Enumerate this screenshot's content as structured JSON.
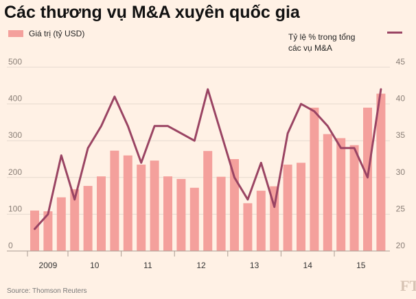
{
  "chart_data": {
    "type": "bar",
    "title": "Các thương vụ M&A xuyên quốc gia",
    "source": "Source: Thomson Reuters",
    "logo": "FT",
    "legend": {
      "bar_label": "Giá trị (tỷ USD)",
      "line_label_1": "Tỷ lệ % trong tổng",
      "line_label_2": "các vụ M&A"
    },
    "left_axis": {
      "ylim": [
        0,
        500
      ],
      "ticks": [
        0,
        100,
        200,
        300,
        400,
        500
      ]
    },
    "right_axis": {
      "ylim": [
        20,
        45
      ],
      "ticks": [
        20,
        25,
        30,
        35,
        40,
        45
      ]
    },
    "x_labels": [
      "2009",
      "10",
      "11",
      "12",
      "13",
      "14",
      "15"
    ],
    "series": [
      {
        "name": "Giá trị (tỷ USD)",
        "kind": "bar",
        "color": "#f4a09c",
        "values": [
          110,
          108,
          146,
          168,
          177,
          203,
          273,
          260,
          235,
          246,
          203,
          196,
          172,
          272,
          202,
          250,
          130,
          164,
          176,
          235,
          240,
          390,
          318,
          307,
          288,
          390,
          428
        ]
      },
      {
        "name": "Tỷ lệ % trong tổng các vụ M&A",
        "kind": "line",
        "color": "#9a4463",
        "values": [
          23,
          25,
          33,
          27,
          34,
          37,
          41,
          37,
          32,
          37,
          37,
          36,
          35,
          42,
          36,
          30,
          27,
          32,
          26,
          36,
          40,
          39,
          37,
          34,
          34,
          30,
          42
        ]
      }
    ]
  }
}
